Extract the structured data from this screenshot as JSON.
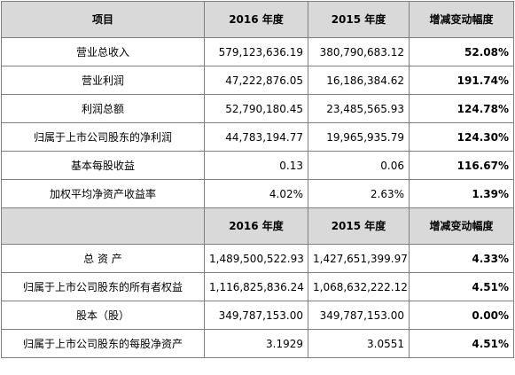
{
  "table1": {
    "headers": [
      "项目",
      "2016 年度",
      "2015 年度",
      "增减变动幅度"
    ],
    "rows": [
      {
        "label": "营业总收入",
        "y2016": "579,123,636.19",
        "y2015": "380,790,683.12",
        "change": "52.08%"
      },
      {
        "label": "营业利润",
        "y2016": "47,222,876.05",
        "y2015": "16,186,384.62",
        "change": "191.74%"
      },
      {
        "label": "利润总额",
        "y2016": "52,790,180.45",
        "y2015": "23,485,565.93",
        "change": "124.78%"
      },
      {
        "label": "归属于上市公司股东的净利润",
        "y2016": "44,783,194.77",
        "y2015": "19,965,935.79",
        "change": "124.30%"
      },
      {
        "label": "基本每股收益",
        "y2016": "0.13",
        "y2015": "0.06",
        "change": "116.67%"
      },
      {
        "label": "加权平均净资产收益率",
        "y2016": "4.02%",
        "y2015": "2.63%",
        "change": "1.39%"
      }
    ]
  },
  "table2": {
    "headers": [
      "",
      "2016 年度",
      "2015 年度",
      "增减变动幅度"
    ],
    "rows": [
      {
        "label": "总 资 产",
        "y2016": "1,489,500,522.93",
        "y2015": "1,427,651,399.97",
        "change": "4.33%"
      },
      {
        "label": "归属于上市公司股东的所有者权益",
        "y2016": "1,116,825,836.24",
        "y2015": "1,068,632,222.12",
        "change": "4.51%"
      },
      {
        "label": "股本（股）",
        "y2016": "349,787,153.00",
        "y2015": "349,787,153.00",
        "change": "0.00%"
      },
      {
        "label": "归属于上市公司股东的每股净资产",
        "y2016": "3.1929",
        "y2015": "3.0551",
        "change": "4.51%"
      }
    ]
  }
}
